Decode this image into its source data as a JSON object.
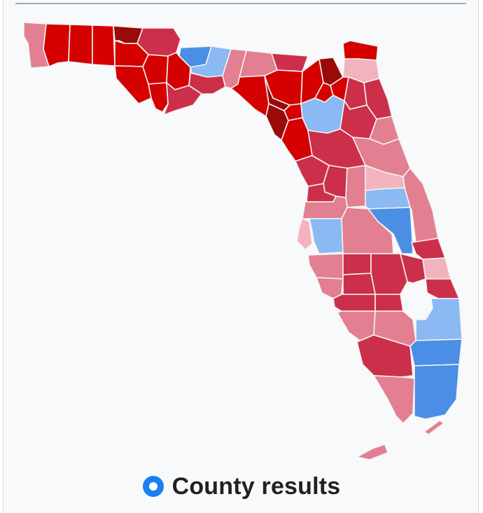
{
  "caption": {
    "text": "County results",
    "icon": "radio-selected-icon"
  },
  "legend_colors": {
    "rep_darkest": "#9a0a0a",
    "rep_dark": "#d50000",
    "rep_mid": "#cc2f4a",
    "rep_light": "#e27f90",
    "rep_lightest": "#f2b3be",
    "dem_light": "#8ab9f3",
    "dem_mid": "#4a8ee6",
    "accent": "#1a7ff2"
  }
}
